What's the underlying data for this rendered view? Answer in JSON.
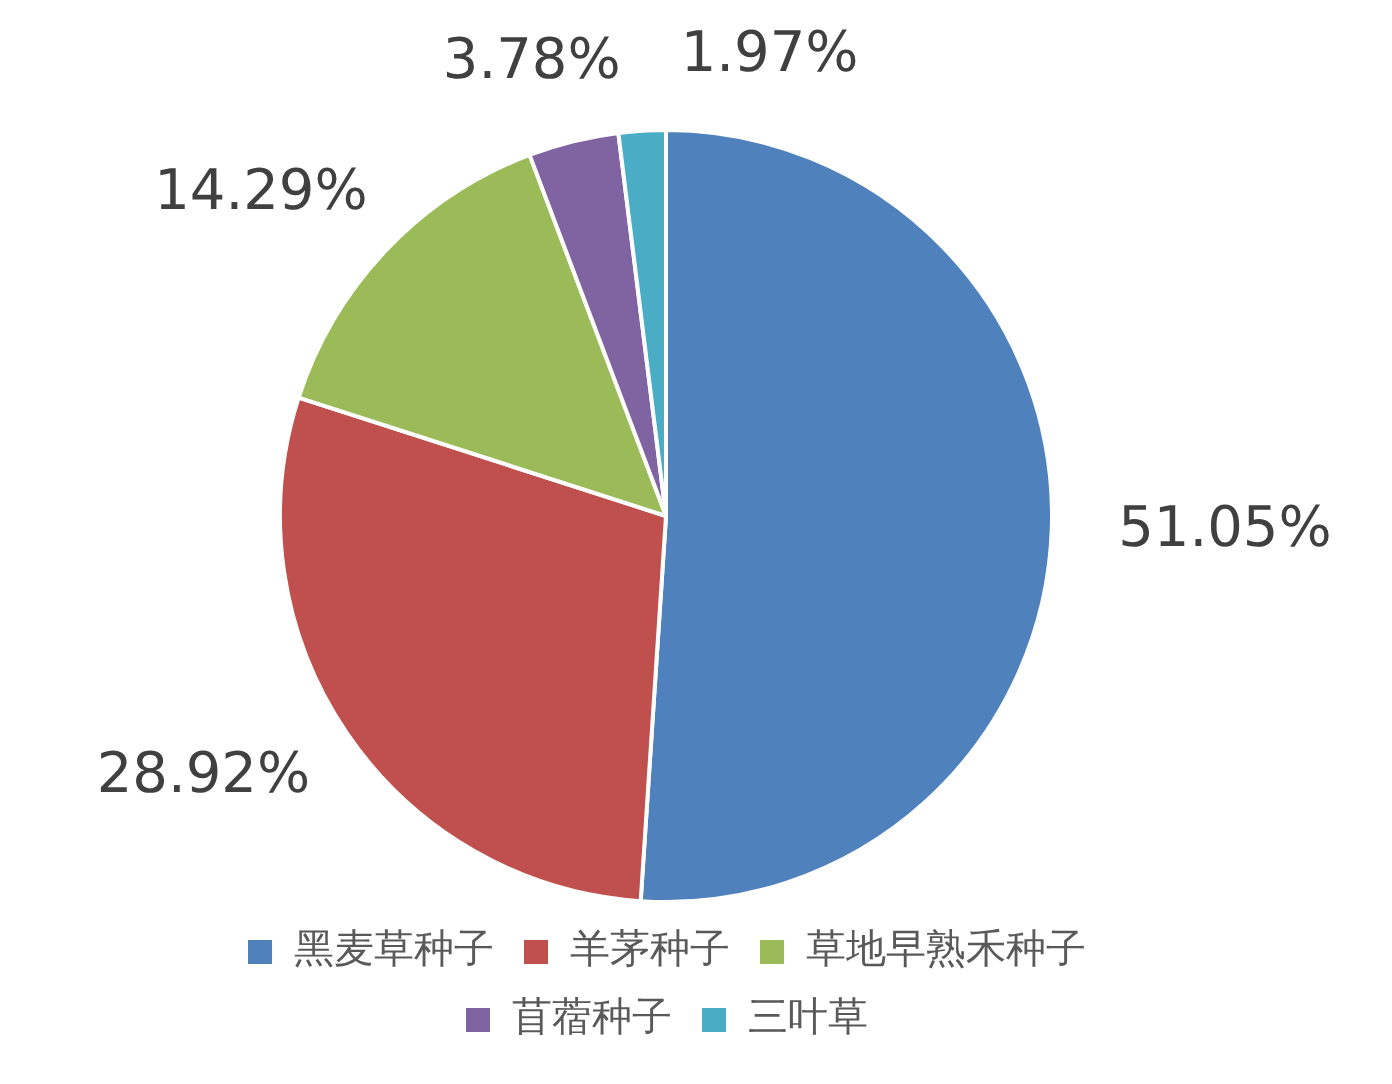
{
  "chart_data": {
    "type": "pie",
    "categories": [
      "黑麦草种子",
      "羊茅种子",
      "草地早熟禾种子",
      "苜蓿种子",
      "三叶草"
    ],
    "values": [
      51.05,
      28.92,
      14.29,
      3.78,
      1.97
    ],
    "colors": [
      "#4f81bd",
      "#c0504d",
      "#9bbb59",
      "#8064a2",
      "#4bacc6"
    ],
    "value_labels": [
      "51.05%",
      "28.92%",
      "14.29%",
      "3.78%",
      "1.97%"
    ],
    "legend": "bottom"
  }
}
